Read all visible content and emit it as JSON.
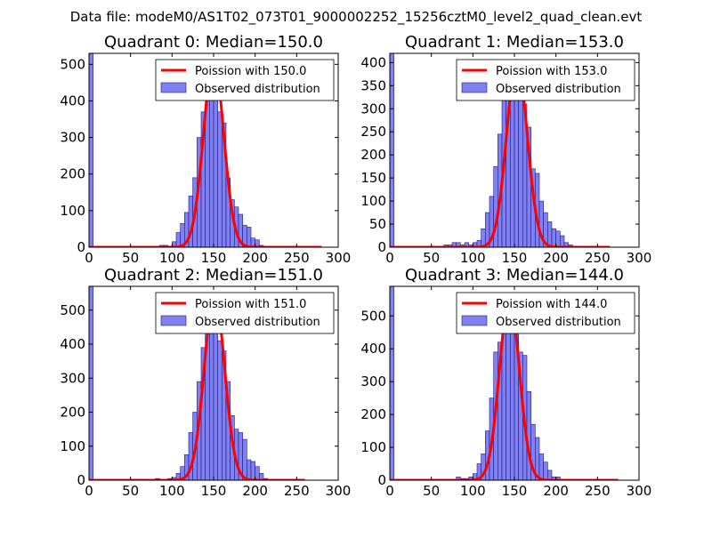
{
  "suptitle": "Data file: modeM0/AS1T02_073T01_9000002252_15256cztM0_level2_quad_clean.evt",
  "colors": {
    "bar_fill": "#8080f0",
    "bar_stroke": "#1a1a8c",
    "curve": "#ff0000"
  },
  "chart_data": [
    {
      "type": "bar",
      "title": "Quadrant 0: Median=150.0",
      "xlim": [
        0,
        300
      ],
      "ylim": [
        0,
        530
      ],
      "xticks": [
        0,
        50,
        100,
        150,
        200,
        250,
        300
      ],
      "yticks": [
        0,
        100,
        200,
        300,
        400,
        500
      ],
      "legend": {
        "position": "top-right",
        "curve_label": "Poission with 150.0",
        "bar_label": "Observed distribution"
      },
      "bars": [
        {
          "x": 0,
          "y": 530
        },
        {
          "x": 85,
          "y": 5
        },
        {
          "x": 90,
          "y": 5
        },
        {
          "x": 95,
          "y": 3
        },
        {
          "x": 100,
          "y": 15
        },
        {
          "x": 105,
          "y": 40
        },
        {
          "x": 110,
          "y": 65
        },
        {
          "x": 115,
          "y": 95
        },
        {
          "x": 120,
          "y": 140
        },
        {
          "x": 125,
          "y": 190
        },
        {
          "x": 130,
          "y": 300
        },
        {
          "x": 135,
          "y": 370
        },
        {
          "x": 140,
          "y": 510
        },
        {
          "x": 145,
          "y": 500
        },
        {
          "x": 150,
          "y": 440
        },
        {
          "x": 155,
          "y": 370
        },
        {
          "x": 160,
          "y": 340
        },
        {
          "x": 165,
          "y": 190
        },
        {
          "x": 170,
          "y": 130
        },
        {
          "x": 175,
          "y": 110
        },
        {
          "x": 180,
          "y": 90
        },
        {
          "x": 185,
          "y": 60
        },
        {
          "x": 190,
          "y": 55
        },
        {
          "x": 195,
          "y": 25
        },
        {
          "x": 200,
          "y": 20
        },
        {
          "x": 205,
          "y": 5
        },
        {
          "x": 210,
          "y": 2
        }
      ],
      "curve": {
        "mean": 150,
        "peak": 510,
        "xmax": 280
      }
    },
    {
      "type": "bar",
      "title": "Quadrant 1: Median=153.0",
      "xlim": [
        0,
        300
      ],
      "ylim": [
        0,
        420
      ],
      "xticks": [
        0,
        50,
        100,
        150,
        200,
        250,
        300
      ],
      "yticks": [
        0,
        50,
        100,
        150,
        200,
        250,
        300,
        350,
        400
      ],
      "legend": {
        "position": "top-right",
        "curve_label": "Poission with 153.0",
        "bar_label": "Observed distribution"
      },
      "bars": [
        {
          "x": 0,
          "y": 420
        },
        {
          "x": 65,
          "y": 5
        },
        {
          "x": 70,
          "y": 5
        },
        {
          "x": 75,
          "y": 10
        },
        {
          "x": 80,
          "y": 10
        },
        {
          "x": 85,
          "y": 5
        },
        {
          "x": 90,
          "y": 10
        },
        {
          "x": 95,
          "y": 5
        },
        {
          "x": 100,
          "y": 10
        },
        {
          "x": 105,
          "y": 15
        },
        {
          "x": 110,
          "y": 40
        },
        {
          "x": 115,
          "y": 75
        },
        {
          "x": 120,
          "y": 110
        },
        {
          "x": 125,
          "y": 175
        },
        {
          "x": 130,
          "y": 245
        },
        {
          "x": 135,
          "y": 320
        },
        {
          "x": 140,
          "y": 400
        },
        {
          "x": 145,
          "y": 395
        },
        {
          "x": 150,
          "y": 390
        },
        {
          "x": 155,
          "y": 320
        },
        {
          "x": 160,
          "y": 310
        },
        {
          "x": 165,
          "y": 260
        },
        {
          "x": 170,
          "y": 170
        },
        {
          "x": 175,
          "y": 160
        },
        {
          "x": 180,
          "y": 100
        },
        {
          "x": 185,
          "y": 75
        },
        {
          "x": 190,
          "y": 55
        },
        {
          "x": 195,
          "y": 40
        },
        {
          "x": 200,
          "y": 35
        },
        {
          "x": 205,
          "y": 25
        },
        {
          "x": 210,
          "y": 10
        },
        {
          "x": 215,
          "y": 5
        }
      ],
      "curve": {
        "mean": 153,
        "peak": 405,
        "xmax": 265
      }
    },
    {
      "type": "bar",
      "title": "Quadrant 2: Median=151.0",
      "xlim": [
        0,
        300
      ],
      "ylim": [
        0,
        570
      ],
      "xticks": [
        0,
        50,
        100,
        150,
        200,
        250,
        300
      ],
      "yticks": [
        0,
        100,
        200,
        300,
        400,
        500
      ],
      "legend": {
        "position": "top-right",
        "curve_label": "Poission with 151.0",
        "bar_label": "Observed distribution"
      },
      "bars": [
        {
          "x": 0,
          "y": 570
        },
        {
          "x": 80,
          "y": 5
        },
        {
          "x": 85,
          "y": 3
        },
        {
          "x": 90,
          "y": 3
        },
        {
          "x": 95,
          "y": 5
        },
        {
          "x": 100,
          "y": 8
        },
        {
          "x": 105,
          "y": 20
        },
        {
          "x": 110,
          "y": 40
        },
        {
          "x": 115,
          "y": 75
        },
        {
          "x": 120,
          "y": 140
        },
        {
          "x": 125,
          "y": 200
        },
        {
          "x": 130,
          "y": 290
        },
        {
          "x": 135,
          "y": 390
        },
        {
          "x": 140,
          "y": 540
        },
        {
          "x": 145,
          "y": 470
        },
        {
          "x": 150,
          "y": 480
        },
        {
          "x": 155,
          "y": 410
        },
        {
          "x": 160,
          "y": 380
        },
        {
          "x": 165,
          "y": 290
        },
        {
          "x": 170,
          "y": 190
        },
        {
          "x": 175,
          "y": 150
        },
        {
          "x": 180,
          "y": 140
        },
        {
          "x": 185,
          "y": 120
        },
        {
          "x": 190,
          "y": 60
        },
        {
          "x": 195,
          "y": 55
        },
        {
          "x": 200,
          "y": 40
        },
        {
          "x": 205,
          "y": 20
        },
        {
          "x": 210,
          "y": 5
        },
        {
          "x": 215,
          "y": 3
        }
      ],
      "curve": {
        "mean": 151,
        "peak": 545,
        "xmax": 260
      }
    },
    {
      "type": "bar",
      "title": "Quadrant 3: Median=144.0",
      "xlim": [
        0,
        300
      ],
      "ylim": [
        0,
        590
      ],
      "xticks": [
        0,
        50,
        100,
        150,
        200,
        250,
        300
      ],
      "yticks": [
        0,
        100,
        200,
        300,
        400,
        500
      ],
      "legend": {
        "position": "top-right",
        "curve_label": "Poission with 144.0",
        "bar_label": "Observed distribution"
      },
      "bars": [
        {
          "x": 0,
          "y": 590
        },
        {
          "x": 80,
          "y": 10
        },
        {
          "x": 85,
          "y": 5
        },
        {
          "x": 90,
          "y": 5
        },
        {
          "x": 95,
          "y": 10
        },
        {
          "x": 100,
          "y": 20
        },
        {
          "x": 105,
          "y": 50
        },
        {
          "x": 110,
          "y": 80
        },
        {
          "x": 115,
          "y": 150
        },
        {
          "x": 120,
          "y": 250
        },
        {
          "x": 125,
          "y": 390
        },
        {
          "x": 130,
          "y": 420
        },
        {
          "x": 135,
          "y": 560
        },
        {
          "x": 140,
          "y": 520
        },
        {
          "x": 145,
          "y": 555
        },
        {
          "x": 150,
          "y": 520
        },
        {
          "x": 155,
          "y": 390
        },
        {
          "x": 160,
          "y": 380
        },
        {
          "x": 165,
          "y": 270
        },
        {
          "x": 170,
          "y": 170
        },
        {
          "x": 175,
          "y": 130
        },
        {
          "x": 180,
          "y": 80
        },
        {
          "x": 185,
          "y": 55
        },
        {
          "x": 190,
          "y": 30
        },
        {
          "x": 195,
          "y": 10
        },
        {
          "x": 200,
          "y": 10
        }
      ],
      "curve": {
        "mean": 144,
        "peak": 555,
        "xmax": 275
      }
    }
  ]
}
